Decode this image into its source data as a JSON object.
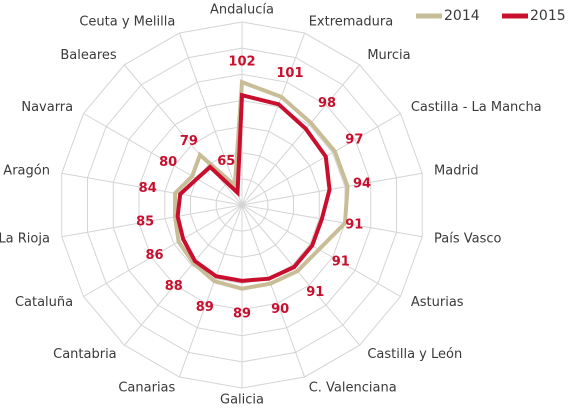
{
  "chart_data": {
    "type": "radar",
    "categories": [
      "Andalucía",
      "Extremadura",
      "Murcia",
      "Castilla - La Mancha",
      "Madrid",
      "País Vasco",
      "Asturias",
      "Castilla y León",
      "C. Valenciana",
      "Galicia",
      "Canarias",
      "Cantabria",
      "Cataluña",
      "La Rioja",
      "Aragón",
      "Navarra",
      "Baleares",
      "Ceuta y Melilla"
    ],
    "series": [
      {
        "name": "2014",
        "color": "#c9bd98",
        "values": [
          107,
          104,
          101,
          101,
          101,
          100,
          94,
          93,
          92,
          92,
          91,
          89,
          88,
          86,
          86,
          82,
          85,
          68
        ]
      },
      {
        "name": "2015",
        "color": "#c8102e",
        "values": [
          102,
          101,
          98,
          97,
          94,
          91,
          91,
          91,
          90,
          89,
          89,
          88,
          86,
          85,
          84,
          80,
          79,
          65
        ],
        "data_labels": true
      }
    ],
    "rlim": [
      60,
      130
    ],
    "rticks": [
      60,
      70,
      80,
      90,
      100,
      110,
      120,
      130
    ],
    "grid": true,
    "legend": "top-right"
  }
}
